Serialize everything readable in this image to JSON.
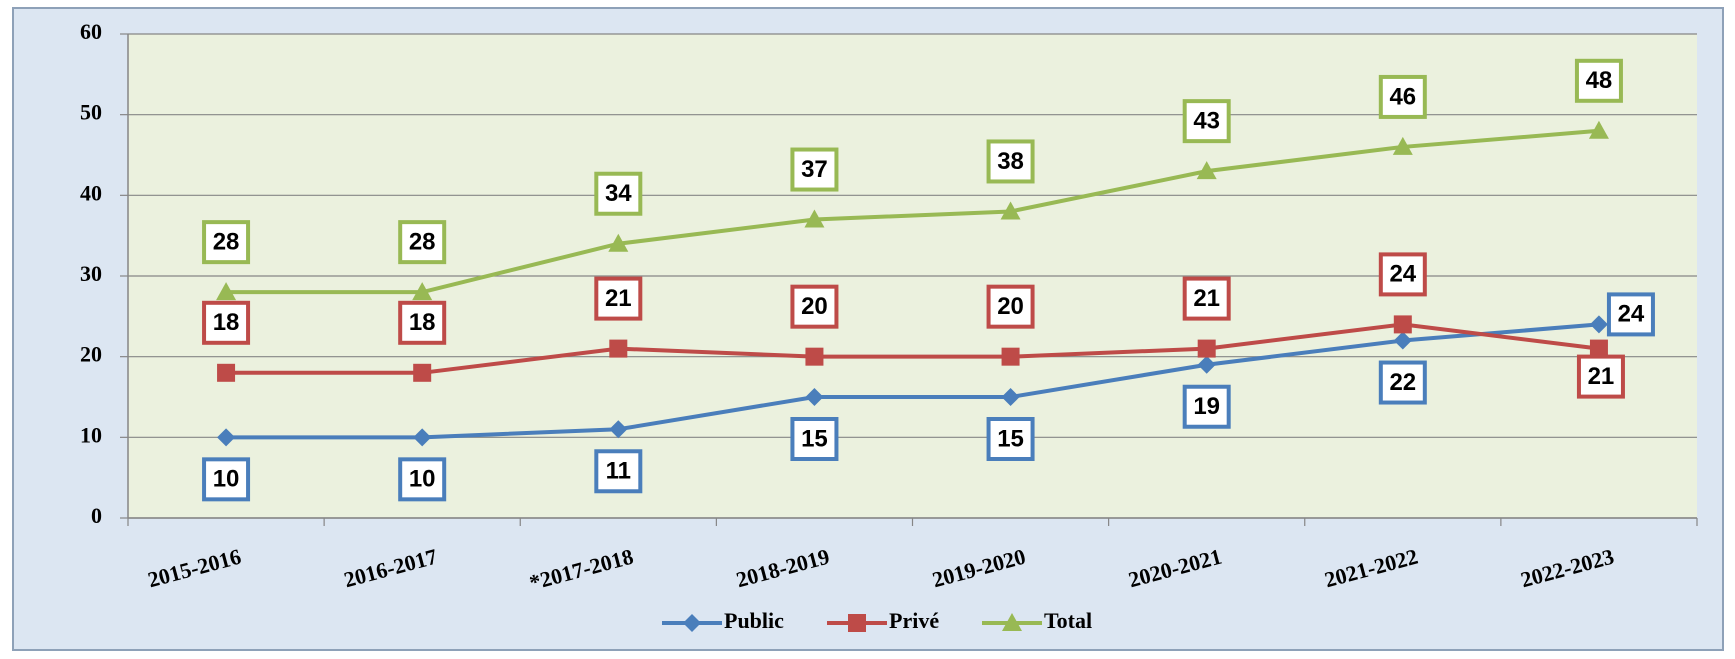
{
  "chart_data": {
    "type": "line",
    "categories": [
      "2015-2016",
      "2016-2017",
      "*2017-2018",
      "2018-2019",
      "2019-2020",
      "2020-2021",
      "2021-2022",
      "2022-2023"
    ],
    "series": [
      {
        "name": "Public",
        "color": "#4a7ebb",
        "values": [
          10,
          10,
          11,
          15,
          15,
          19,
          22,
          24
        ]
      },
      {
        "name": "Privé",
        "color": "#be4b48",
        "values": [
          18,
          18,
          21,
          20,
          20,
          21,
          24,
          21
        ]
      },
      {
        "name": "Total",
        "color": "#98b954",
        "values": [
          28,
          28,
          34,
          37,
          38,
          43,
          46,
          48
        ]
      }
    ],
    "ylim": [
      0,
      60
    ],
    "yticks": [
      0,
      10,
      20,
      30,
      40,
      50,
      60
    ],
    "grid": true,
    "legend": "bottom"
  }
}
